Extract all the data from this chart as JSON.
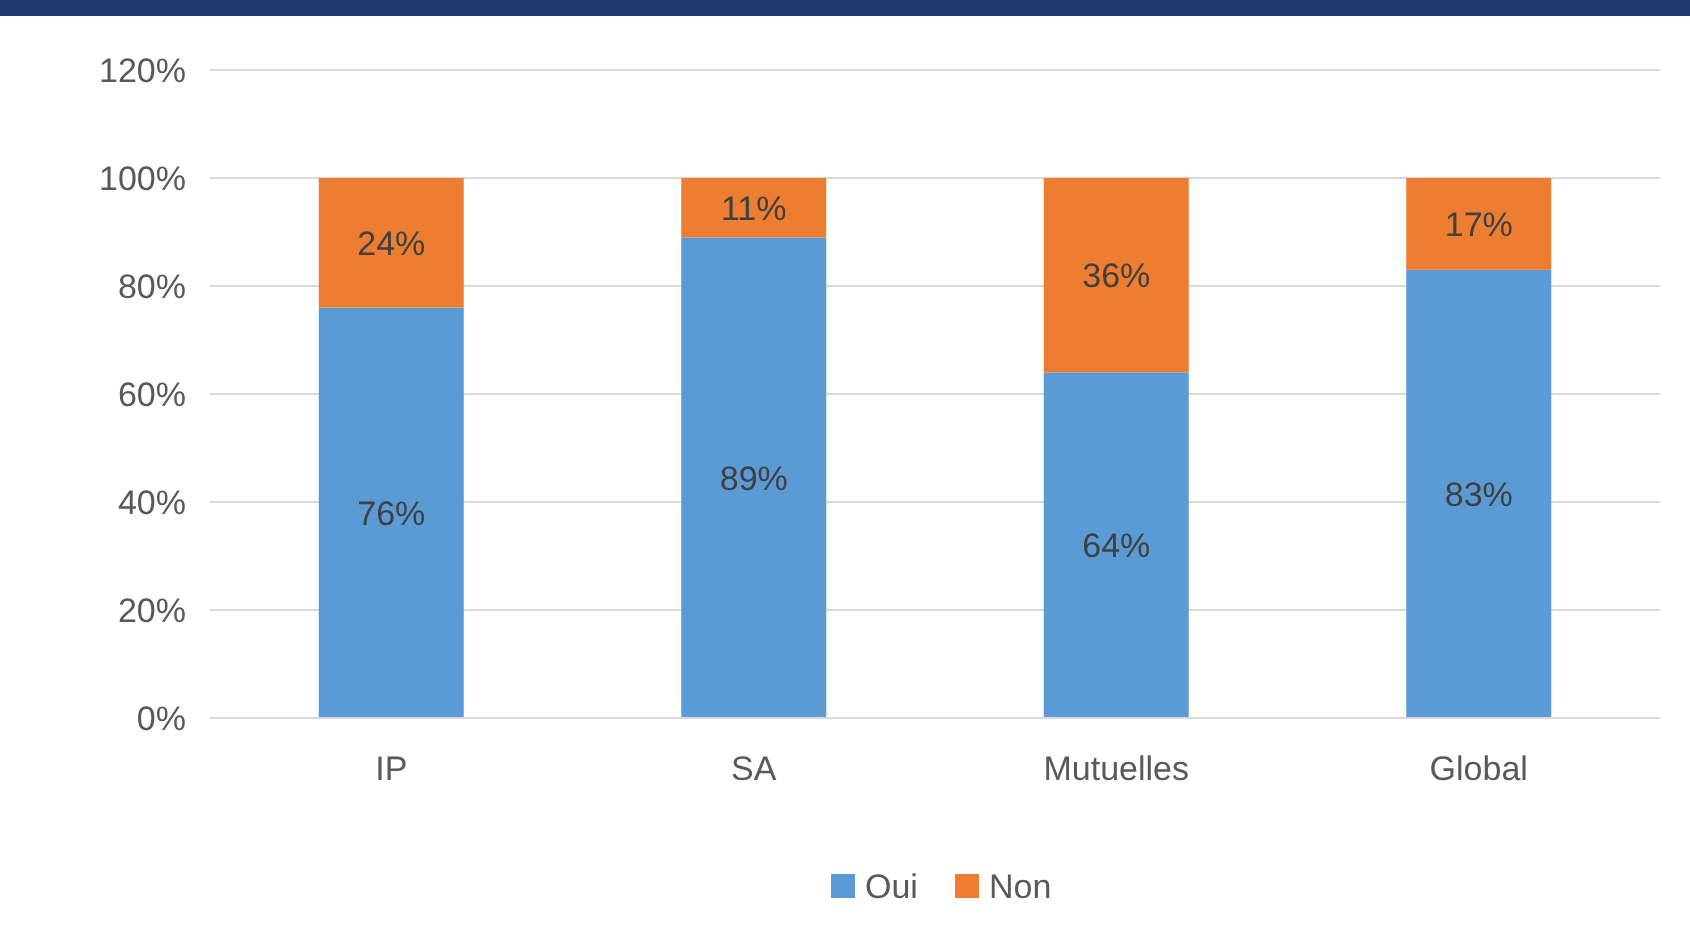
{
  "chart_data": {
    "type": "bar",
    "stacked": true,
    "categories": [
      "IP",
      "SA",
      "Mutuelles",
      "Global"
    ],
    "series": [
      {
        "name": "Oui",
        "color": "#5b9bd5",
        "values": [
          76,
          89,
          64,
          83
        ],
        "value_labels": [
          "76%",
          "89%",
          "64%",
          "83%"
        ]
      },
      {
        "name": "Non",
        "color": "#ed7d31",
        "values": [
          24,
          11,
          36,
          17
        ],
        "value_labels": [
          "24%",
          "11%",
          "36%",
          "17%"
        ]
      }
    ],
    "ylim": [
      0,
      120
    ],
    "yticks": [
      {
        "value": 0,
        "label": "0%"
      },
      {
        "value": 20,
        "label": "20%"
      },
      {
        "value": 40,
        "label": "40%"
      },
      {
        "value": 60,
        "label": "60%"
      },
      {
        "value": 80,
        "label": "80%"
      },
      {
        "value": 100,
        "label": "100%"
      },
      {
        "value": 120,
        "label": "120%"
      }
    ],
    "grid": "y",
    "legend": "bottom"
  }
}
